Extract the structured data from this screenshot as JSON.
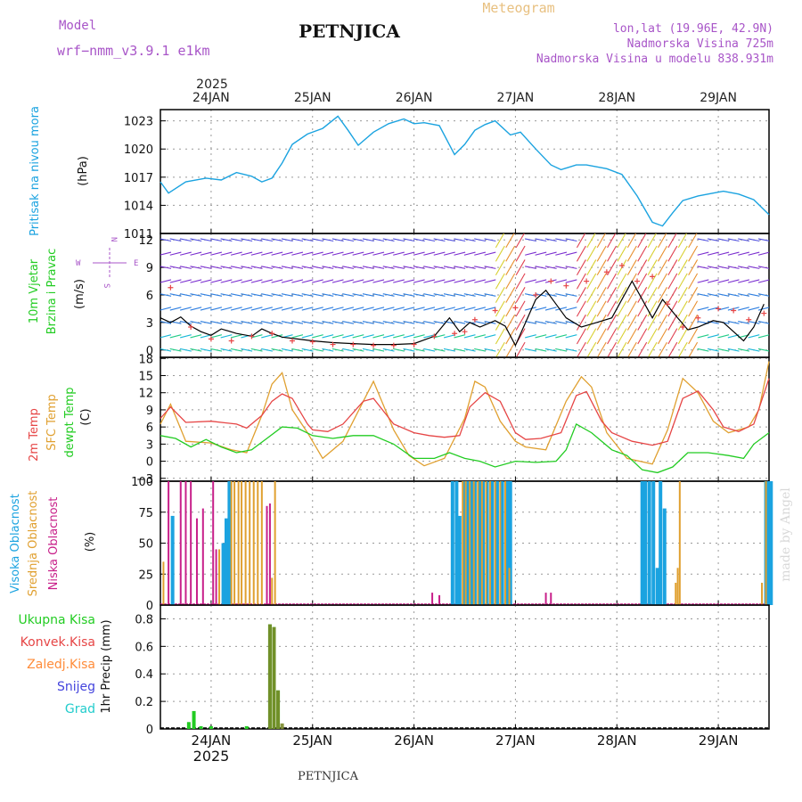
{
  "header": {
    "model_label": "Model",
    "model_value": "wrf−nmm_v3.9.1  e1km",
    "station": "PETNJICA",
    "product": "Meteogram",
    "lonlat": "lon,lat (19.96E, 42.9N)",
    "elevation": "Nadmorska Visina 725m",
    "model_elevation": "Nadmorska Visina u modelu 838.931m",
    "footer_station": "PETNJICA",
    "watermark": "made by Angel"
  },
  "colors": {
    "pressure": "#1ba3e0",
    "temp2m": "#e64545",
    "sfc_temp": "#e0a030",
    "dewpt": "#22cc22",
    "high_cloud": "#1ba3e0",
    "mid_cloud": "#e0a030",
    "low_cloud": "#c8208a",
    "total_precip": "#22cc22",
    "conv_precip": "#e64545",
    "frozen_precip": "#ff8c3a",
    "snow": "#4444dd",
    "hail": "#22cccc",
    "wind_speed": "#000000",
    "gust": "#e64545"
  },
  "time_axis": {
    "year": "2025",
    "day_labels": [
      "24JAN",
      "25JAN",
      "26JAN",
      "27JAN",
      "28JAN",
      "29JAN"
    ],
    "day_positions": [
      0.5,
      1.5,
      2.5,
      3.5,
      4.5,
      5.5
    ],
    "range": [
      0,
      6
    ]
  },
  "chart_data": [
    {
      "id": "pressure",
      "type": "line",
      "ylabel_left": "Pritisak na nivou mora",
      "ylabel": "(hPa)",
      "yticks": [
        1011,
        1014,
        1017,
        1020,
        1023
      ],
      "ylim": [
        1011,
        1024.2
      ],
      "series": [
        {
          "x": [
            0,
            0.08,
            0.25,
            0.45,
            0.6,
            0.75,
            0.9,
            1.0,
            1.1,
            1.2,
            1.3,
            1.45,
            1.6,
            1.75,
            1.85,
            1.95,
            2.1,
            2.25,
            2.4,
            2.5,
            2.6,
            2.75,
            2.9,
            3.0,
            3.1,
            3.2,
            3.3,
            3.45,
            3.55,
            3.7,
            3.85,
            3.95,
            4.1,
            4.2,
            4.4,
            4.55,
            4.7,
            4.85,
            4.95,
            5.05,
            5.15,
            5.3,
            5.45,
            5.55,
            5.7,
            5.85,
            6.0
          ],
          "values": [
            1016.5,
            1015.3,
            1016.5,
            1016.9,
            1016.7,
            1017.5,
            1017.1,
            1016.5,
            1016.9,
            1018.5,
            1020.5,
            1021.6,
            1022.2,
            1023.5,
            1022.0,
            1020.4,
            1021.8,
            1022.7,
            1023.2,
            1022.7,
            1022.8,
            1022.5,
            1019.4,
            1020.5,
            1022.0,
            1022.6,
            1023.0,
            1021.5,
            1021.8,
            1020.0,
            1018.3,
            1017.8,
            1018.3,
            1018.3,
            1017.9,
            1017.3,
            1015.0,
            1012.2,
            1011.8,
            1013.2,
            1014.5,
            1015.0,
            1015.3,
            1015.5,
            1015.2,
            1014.6,
            1013.0
          ]
        }
      ]
    },
    {
      "id": "wind",
      "type": "line",
      "ylabel_left_1": "10m  Vjetar",
      "ylabel_left_2": "Brzina  i  Pravac",
      "ylabel": "(m/s)",
      "compass": {
        "n": "N",
        "w": "W",
        "e": "E",
        "s": "S"
      },
      "yticks": [
        0,
        3,
        6,
        9,
        12
      ],
      "ylim": [
        -0.8,
        12.7
      ],
      "series": [
        {
          "name": "speed",
          "x": [
            0,
            0.1,
            0.2,
            0.3,
            0.4,
            0.5,
            0.6,
            0.75,
            0.9,
            1.0,
            1.1,
            1.2,
            1.35,
            1.5,
            1.7,
            1.9,
            2.1,
            2.3,
            2.5,
            2.7,
            2.85,
            2.95,
            3.05,
            3.15,
            3.3,
            3.4,
            3.5,
            3.6,
            3.7,
            3.8,
            3.9,
            4.0,
            4.15,
            4.3,
            4.45,
            4.55,
            4.65,
            4.75,
            4.85,
            4.95,
            5.1,
            5.2,
            5.3,
            5.45,
            5.55,
            5.65,
            5.75,
            5.85,
            5.95
          ],
          "values": [
            3.5,
            3.0,
            3.6,
            2.6,
            2.0,
            1.6,
            2.3,
            1.8,
            1.5,
            2.3,
            1.8,
            1.4,
            1.2,
            1.0,
            0.8,
            0.7,
            0.6,
            0.6,
            0.7,
            1.5,
            3.5,
            2.0,
            3.0,
            2.5,
            3.2,
            2.6,
            0.5,
            3.0,
            5.5,
            6.5,
            5.0,
            3.5,
            2.5,
            3.0,
            3.5,
            5.5,
            7.5,
            5.5,
            3.5,
            5.5,
            3.5,
            2.2,
            2.5,
            3.2,
            3.0,
            2.0,
            1.0,
            2.5,
            5.0
          ]
        },
        {
          "name": "gust",
          "x": [
            0.1,
            0.3,
            0.5,
            0.7,
            0.9,
            1.1,
            1.3,
            1.5,
            1.7,
            1.9,
            2.1,
            2.3,
            2.5,
            2.7,
            2.9,
            3.0,
            3.1,
            3.3,
            3.5,
            3.7,
            3.85,
            4.0,
            4.2,
            4.4,
            4.55,
            4.7,
            4.85,
            5.0,
            5.15,
            5.3,
            5.5,
            5.65,
            5.8,
            5.95
          ],
          "values": [
            6.8,
            2.5,
            1.2,
            1.0,
            1.5,
            1.8,
            1.0,
            0.9,
            0.6,
            0.6,
            0.5,
            0.5,
            0.6,
            1.5,
            1.8,
            2.0,
            3.3,
            4.3,
            4.6,
            6.0,
            7.5,
            7.0,
            7.5,
            8.5,
            9.2,
            7.5,
            8.0,
            5.0,
            2.5,
            3.5,
            4.5,
            4.3,
            3.3,
            4.0
          ]
        }
      ]
    },
    {
      "id": "temperature",
      "type": "line",
      "ylabel_left_1": "2m  Temp",
      "ylabel_left_2": "SFC  Temp",
      "ylabel_left_3": "dewpt  Temp",
      "ylabel": "(C)",
      "yticks": [
        -3,
        0,
        3,
        6,
        9,
        12,
        15,
        18
      ],
      "ylim": [
        -3.5,
        18.2
      ],
      "series": [
        {
          "name": "2m Temp",
          "x": [
            0,
            0.1,
            0.25,
            0.5,
            0.75,
            0.85,
            1.0,
            1.1,
            1.2,
            1.3,
            1.45,
            1.5,
            1.65,
            1.8,
            2.0,
            2.1,
            2.3,
            2.5,
            2.65,
            2.8,
            2.95,
            3.05,
            3.2,
            3.35,
            3.5,
            3.6,
            3.75,
            3.95,
            4.1,
            4.2,
            4.35,
            4.45,
            4.65,
            4.85,
            5.0,
            5.15,
            5.3,
            5.45,
            5.55,
            5.7,
            5.85,
            6.0
          ],
          "values": [
            7.5,
            9.5,
            6.8,
            7.0,
            6.5,
            5.8,
            8.0,
            10.5,
            11.8,
            11.0,
            6.5,
            5.5,
            5.2,
            6.5,
            10.5,
            11.0,
            6.5,
            5.0,
            4.5,
            4.2,
            4.5,
            9.5,
            12.0,
            10.5,
            5.0,
            3.8,
            4.0,
            5.0,
            11.5,
            12.2,
            7.0,
            5.0,
            3.5,
            2.8,
            3.5,
            11.0,
            12.3,
            9.0,
            6.0,
            5.2,
            6.5,
            14.5
          ]
        },
        {
          "name": "SFC Temp",
          "x": [
            0,
            0.1,
            0.25,
            0.5,
            0.7,
            0.85,
            1.0,
            1.1,
            1.2,
            1.3,
            1.45,
            1.6,
            1.8,
            2.0,
            2.1,
            2.3,
            2.45,
            2.6,
            2.8,
            3.0,
            3.1,
            3.2,
            3.35,
            3.5,
            3.6,
            3.8,
            4.0,
            4.15,
            4.25,
            4.4,
            4.6,
            4.85,
            5.0,
            5.15,
            5.3,
            5.45,
            5.6,
            5.8,
            5.9,
            6.0
          ],
          "values": [
            6.5,
            10.0,
            3.5,
            3.2,
            2.0,
            1.5,
            8.0,
            13.5,
            15.5,
            9.0,
            5.0,
            0.5,
            3.5,
            10.5,
            14.0,
            5.5,
            1.0,
            -0.8,
            0.5,
            7.5,
            14.0,
            13.0,
            7.0,
            3.5,
            2.5,
            2.0,
            10.5,
            14.8,
            13.0,
            5.0,
            0.5,
            -0.5,
            5.5,
            14.5,
            12.0,
            7.0,
            5.0,
            6.0,
            9.0,
            17.5
          ]
        },
        {
          "name": "dewpt Temp",
          "x": [
            0,
            0.15,
            0.3,
            0.45,
            0.6,
            0.75,
            0.9,
            1.05,
            1.2,
            1.35,
            1.5,
            1.7,
            1.9,
            2.1,
            2.3,
            2.5,
            2.7,
            2.85,
            3.0,
            3.15,
            3.3,
            3.5,
            3.7,
            3.9,
            4.0,
            4.1,
            4.25,
            4.45,
            4.6,
            4.75,
            4.9,
            5.05,
            5.2,
            5.4,
            5.6,
            5.75,
            5.85,
            6.0
          ],
          "values": [
            4.5,
            4.0,
            2.5,
            3.8,
            2.5,
            1.5,
            2.0,
            4.0,
            6.0,
            5.8,
            4.5,
            4.0,
            4.5,
            4.5,
            3.0,
            0.5,
            0.5,
            1.5,
            0.5,
            0.0,
            -1.0,
            0.0,
            -0.2,
            0.0,
            2.0,
            6.5,
            5.0,
            2.0,
            1.0,
            -1.5,
            -2.0,
            -1.0,
            1.5,
            1.5,
            1.0,
            0.5,
            3.0,
            5.0
          ]
        }
      ]
    },
    {
      "id": "clouds",
      "type": "bar",
      "ylabel_left_1": "Visoka  Oblacnost",
      "ylabel_left_2": "Srednja  Oblacnost",
      "ylabel_left_3": "Niska  Oblacnost",
      "ylabel": "(%)",
      "yticks": [
        0,
        25,
        50,
        75,
        100
      ],
      "ylim": [
        0,
        100
      ],
      "series": [
        {
          "name": "Visoka",
          "x": [
            0.12,
            0.62,
            0.65,
            0.68,
            2.88,
            2.92,
            2.95,
            3.0,
            3.03,
            3.07,
            3.1,
            3.15,
            3.18,
            3.22,
            3.27,
            3.32,
            3.37,
            3.42,
            3.45,
            4.75,
            4.78,
            4.82,
            4.86,
            4.9,
            4.93,
            4.97,
            5.97,
            6.0,
            6.02
          ],
          "values": [
            72,
            50,
            70,
            100,
            100,
            100,
            72,
            100,
            100,
            100,
            100,
            100,
            100,
            100,
            100,
            100,
            100,
            100,
            100,
            100,
            100,
            100,
            100,
            30,
            100,
            78,
            100,
            100,
            100
          ]
        },
        {
          "name": "Srednja",
          "x": [
            0.03,
            0.58,
            0.7,
            0.73,
            0.77,
            0.8,
            0.84,
            0.88,
            0.92,
            0.96,
            1.0,
            1.1,
            1.13,
            2.98,
            3.01,
            3.05,
            3.09,
            3.13,
            3.17,
            3.21,
            3.25,
            3.3,
            3.35,
            3.4,
            3.44,
            5.08,
            5.1,
            5.12,
            5.93,
            5.97
          ],
          "values": [
            35,
            45,
            100,
            100,
            100,
            100,
            100,
            100,
            100,
            100,
            100,
            22,
            100,
            100,
            100,
            100,
            100,
            100,
            100,
            100,
            100,
            100,
            100,
            100,
            30,
            18,
            30,
            100,
            18,
            100
          ]
        },
        {
          "name": "Niska",
          "x": [
            0.08,
            0.2,
            0.25,
            0.3,
            0.36,
            0.42,
            0.52,
            0.55,
            1.05,
            1.08,
            2.68,
            2.75,
            3.8,
            3.85
          ],
          "values": [
            100,
            100,
            100,
            100,
            70,
            78,
            100,
            45,
            80,
            82,
            10,
            8,
            10,
            10
          ]
        }
      ]
    },
    {
      "id": "precip",
      "type": "bar",
      "labels": [
        "Ukupna  Kisa",
        "Konvek.Kisa",
        "Zaledj.Kisa",
        "Snijeg",
        "Grad"
      ],
      "ylabel": "1hr Precip (mm)",
      "yticks": [
        0,
        0.2,
        0.4,
        0.6,
        0.8
      ],
      "ylim": [
        0,
        0.9
      ],
      "series": [
        {
          "name": "Ukupna Kisa",
          "x": [
            0.28,
            0.33,
            0.4,
            0.5,
            0.85,
            1.08,
            1.12,
            1.16
          ],
          "values": [
            0.05,
            0.13,
            0.02,
            0.02,
            0.02,
            0.76,
            0.74,
            0.28
          ]
        },
        {
          "name": "Zaledj.Kisa",
          "x": [
            1.08,
            1.12,
            1.16,
            1.2
          ],
          "values": [
            0.76,
            0.74,
            0.28,
            0.04
          ]
        }
      ]
    }
  ]
}
